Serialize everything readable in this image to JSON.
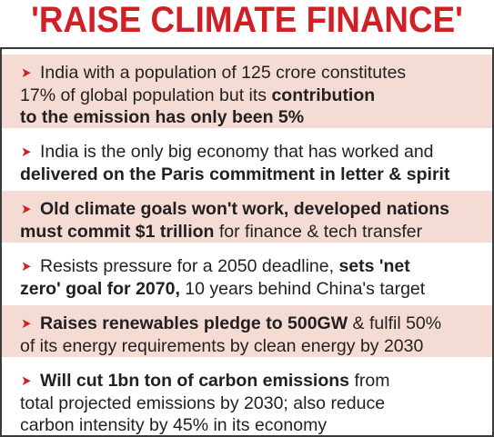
{
  "headline": "'RAISE CLIMATE FINANCE'",
  "bullet_glyph": "➤",
  "colors": {
    "headline": "#d11f26",
    "arrow": "#d11f26",
    "row_tint": "#f4dcd4",
    "text": "#231f20"
  },
  "items": [
    {
      "line1": "India with a population of 125 crore constitutes",
      "line2_plain": "17% of global population but its ",
      "line2_bold": "contribution",
      "line3_bold": "to the emission has only been 5%"
    },
    {
      "line1": "India is the only big economy that has worked and",
      "line2_bold": "delivered on the Paris commitment in letter & spirit"
    },
    {
      "line1_bold": "Old climate goals won't work, developed nations",
      "line2_bold": "must commit $1 trillion",
      "line2_plain": " for finance & tech transfer"
    },
    {
      "line1_plain": "Resists pressure for a 2050 deadline, ",
      "line1_bold": "sets 'net",
      "line2_bold": "zero' goal for 2070,",
      "line2_plain": " 10 years behind China's target"
    },
    {
      "line1_bold": "Raises renewables pledge to 500GW",
      "line1_plain": " & fulfil 50%",
      "line2": "of its energy requirements by clean energy by 2030"
    },
    {
      "line1_bold": "Will cut 1bn ton of carbon emissions",
      "line1_plain": " from",
      "line2": "total projected emissions by 2030; also reduce",
      "line3": "carbon intensity by 45% in its economy"
    }
  ]
}
